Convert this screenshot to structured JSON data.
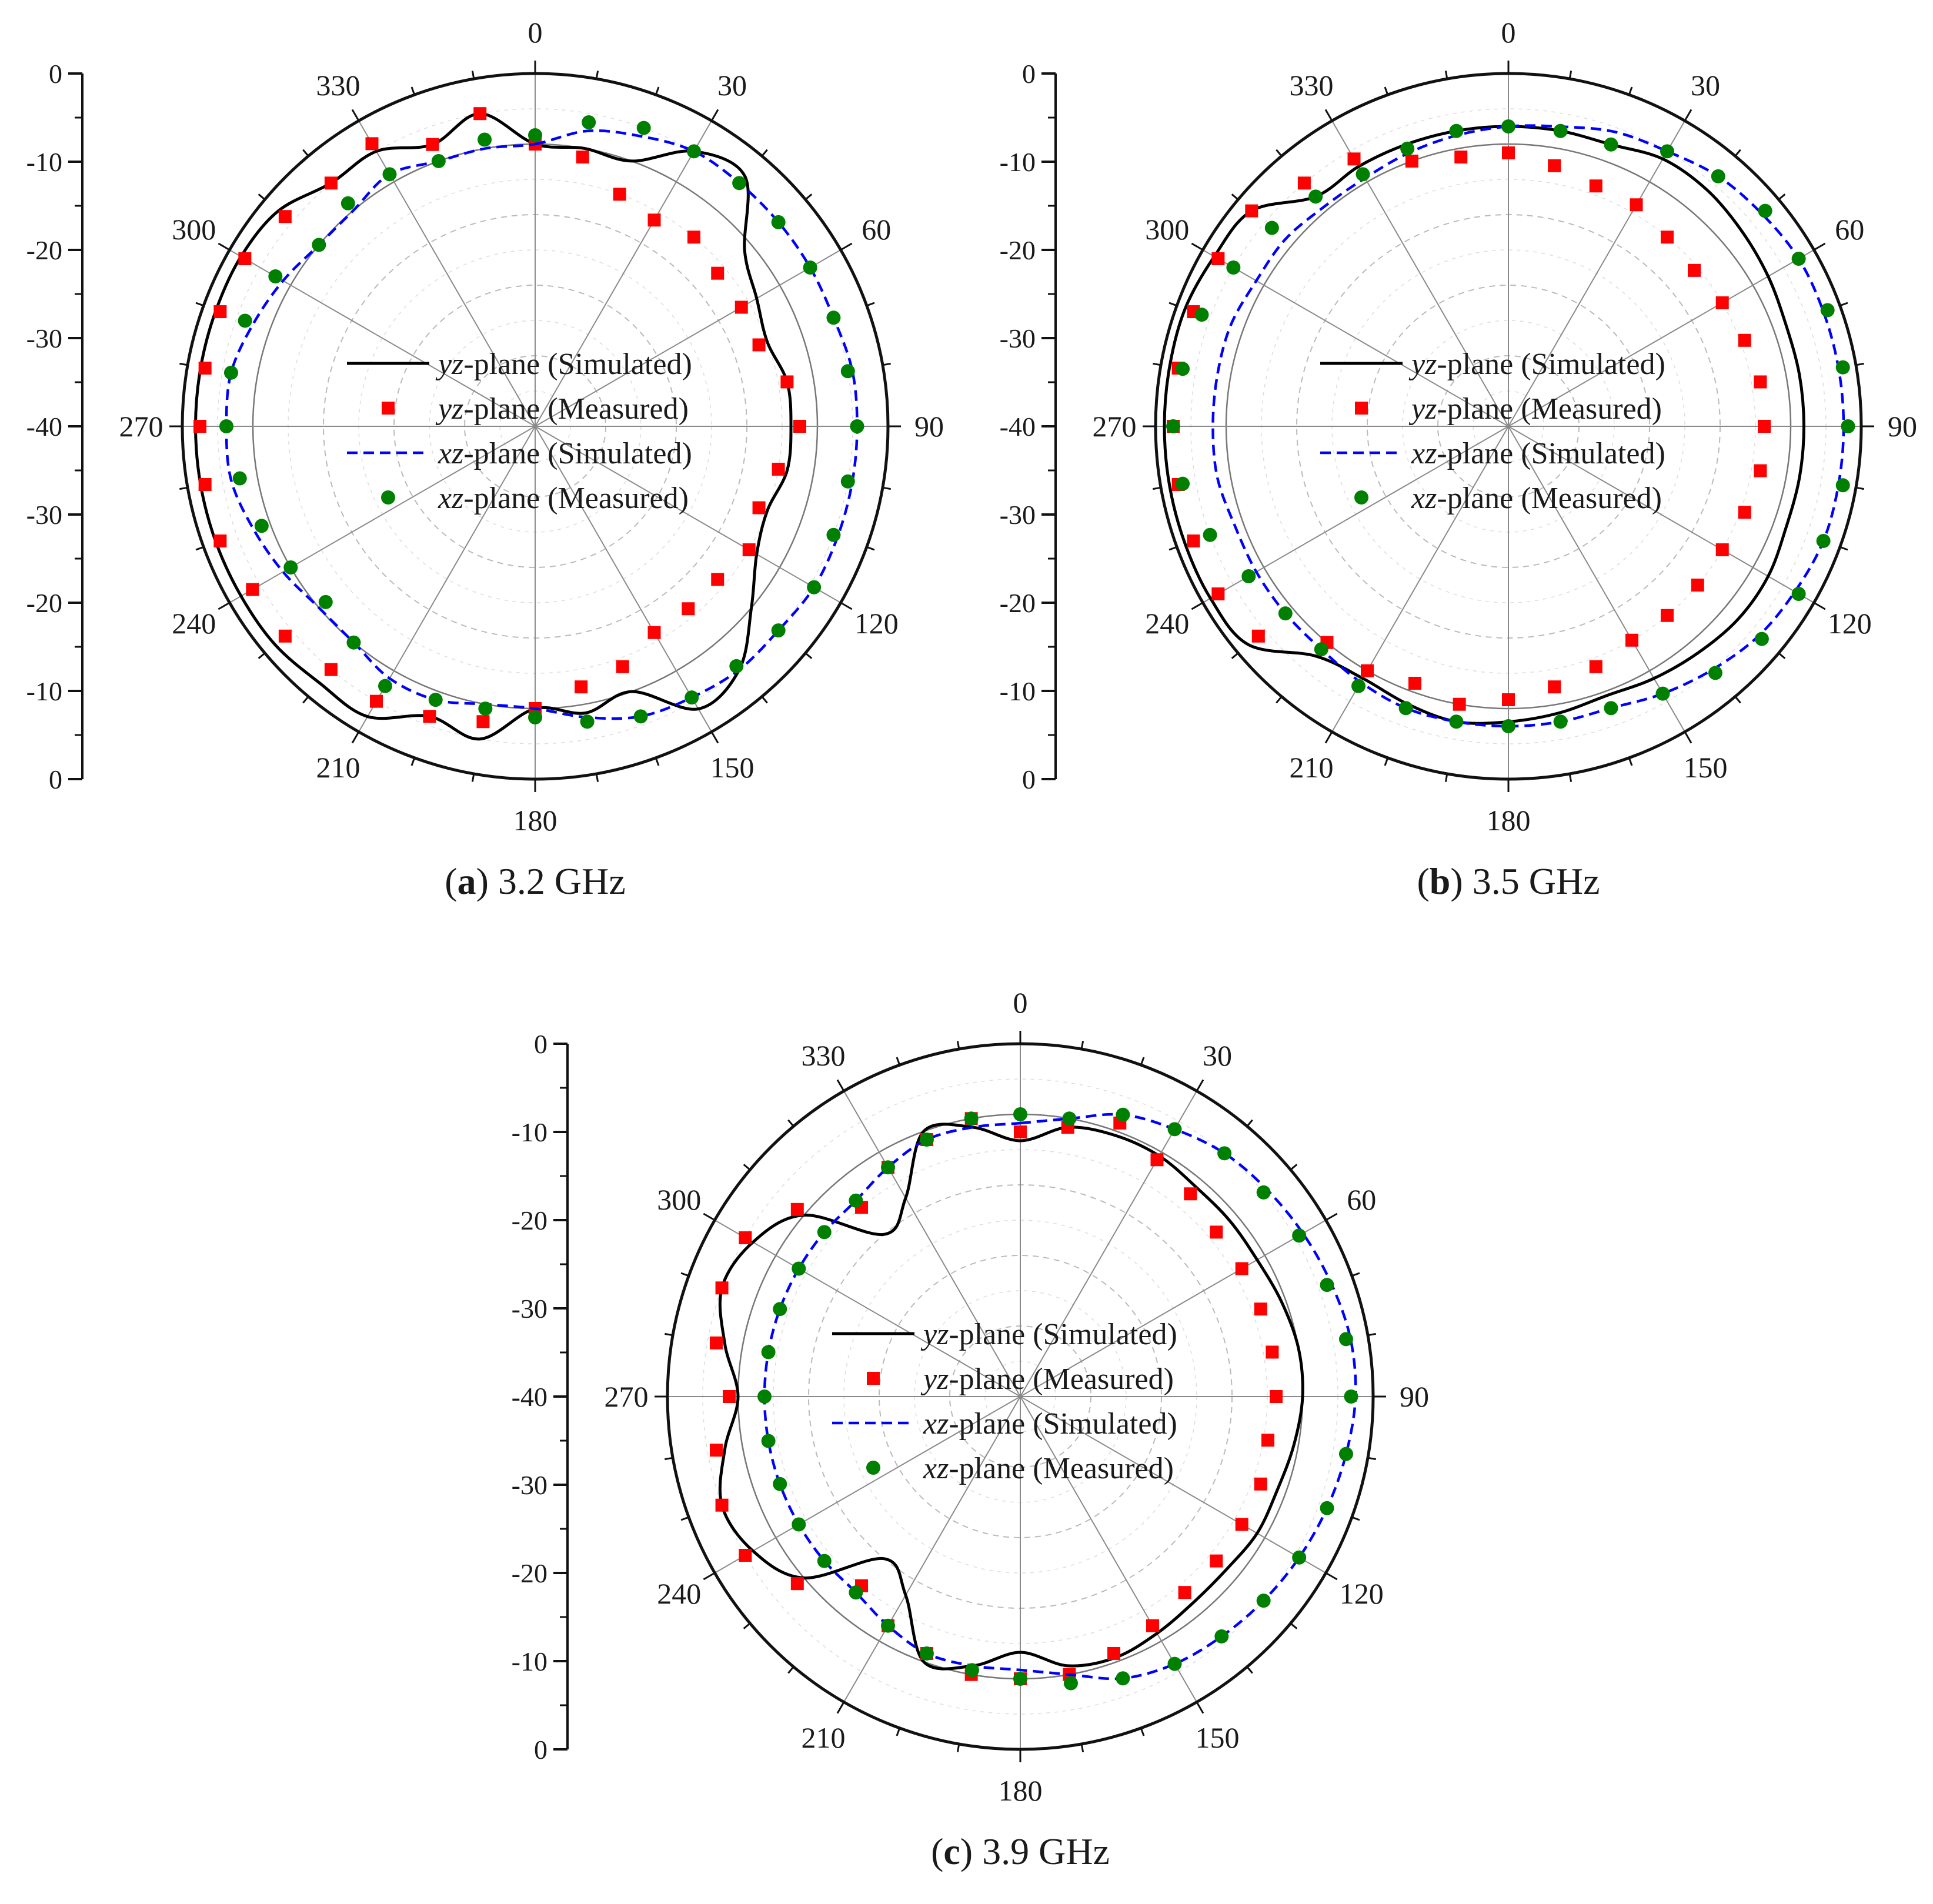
{
  "chart_data": [
    {
      "type": "polar",
      "caption_letter": "a",
      "caption_text": "3.2 GHz",
      "radial_range": [
        -40,
        0
      ],
      "radial_ticks": [
        "0",
        "-10",
        "-20",
        "-30",
        "-40",
        "-30",
        "-20",
        "-10",
        "0"
      ],
      "angle_ticks": [
        "0",
        "30",
        "60",
        "90",
        "120",
        "150",
        "180",
        "210",
        "240",
        "270",
        "300",
        "330"
      ],
      "grid": true,
      "legend_position": "center",
      "series": [
        {
          "name": "yz-plane (Simulated)",
          "style": "solid",
          "color": "#000000",
          "theta": [
            0,
            10,
            20,
            30,
            40,
            50,
            60,
            70,
            80,
            90,
            100,
            110,
            120,
            130,
            140,
            150,
            160,
            170,
            180,
            190,
            200,
            210,
            220,
            230,
            240,
            250,
            260,
            270,
            280,
            290,
            300,
            310,
            320,
            330,
            340,
            350
          ],
          "r_db": [
            -8,
            -8,
            -8,
            -4,
            -3,
            -9,
            -11,
            -12,
            -11,
            -11,
            -11,
            -12,
            -11,
            -8,
            -4,
            -3,
            -8,
            -7,
            -8,
            -4,
            -5,
            -2,
            -2,
            -1.5,
            -1.5,
            -1.5,
            -1.5,
            -1.5,
            -1.5,
            -1.5,
            -1.5,
            -2,
            -4,
            -4,
            -6,
            -4
          ]
        },
        {
          "name": "yz-plane (Measured)",
          "style": "marker-square",
          "color": "#ff0000",
          "theta": [
            0,
            10,
            20,
            30,
            40,
            50,
            60,
            70,
            80,
            90,
            100,
            110,
            120,
            130,
            140,
            150,
            160,
            170,
            180,
            190,
            200,
            210,
            220,
            230,
            240,
            250,
            260,
            270,
            280,
            290,
            300,
            310,
            320,
            330,
            340,
            350
          ],
          "r_db": [
            -8,
            -9,
            -12,
            -13,
            -12,
            -13,
            -13,
            -13,
            -11,
            -10,
            -12,
            -13,
            -12,
            -13,
            -13,
            -13,
            -11,
            -10,
            -8,
            -6,
            -5,
            -4,
            -4,
            -3,
            -3,
            -2,
            -2,
            -2,
            -2,
            -2,
            -2,
            -3,
            -4,
            -3,
            -6,
            -4
          ]
        },
        {
          "name": "xz-plane (Simulated)",
          "style": "dashed",
          "color": "#0000ff",
          "theta": [
            0,
            10,
            20,
            30,
            40,
            50,
            60,
            70,
            80,
            90,
            100,
            110,
            120,
            130,
            140,
            150,
            160,
            170,
            180,
            190,
            200,
            210,
            220,
            230,
            240,
            250,
            260,
            270,
            280,
            290,
            300,
            310,
            320,
            330,
            340,
            350
          ],
          "r_db": [
            -8,
            -6,
            -5,
            -4,
            -4,
            -4,
            -4,
            -4,
            -3.5,
            -3.5,
            -3.5,
            -3.5,
            -3.5,
            -4,
            -4,
            -4.5,
            -5,
            -6.5,
            -8,
            -8,
            -7,
            -7,
            -8,
            -8,
            -7,
            -6,
            -5,
            -5,
            -5,
            -6,
            -7,
            -8,
            -8,
            -7,
            -8,
            -8
          ]
        },
        {
          "name": "xz-plane (Measured)",
          "style": "marker-circle",
          "color": "#008000",
          "theta": [
            0,
            10,
            20,
            30,
            40,
            50,
            60,
            70,
            80,
            90,
            100,
            110,
            120,
            130,
            140,
            150,
            160,
            170,
            180,
            190,
            200,
            210,
            220,
            230,
            240,
            250,
            260,
            270,
            280,
            290,
            300,
            310,
            320,
            330,
            340,
            350
          ],
          "r_db": [
            -7,
            -5,
            -4,
            -4,
            -4,
            -4,
            -4,
            -4,
            -4,
            -3.5,
            -4,
            -4,
            -3.5,
            -4,
            -4.5,
            -4.5,
            -5,
            -6,
            -7,
            -7.5,
            -7,
            -6,
            -8,
            -9,
            -8,
            -7,
            -6,
            -5,
            -5,
            -5,
            -6,
            -8,
            -7,
            -7,
            -8,
            -7
          ]
        }
      ]
    },
    {
      "type": "polar",
      "caption_letter": "b",
      "caption_text": "3.5 GHz",
      "radial_range": [
        -40,
        0
      ],
      "radial_ticks": [
        "0",
        "-10",
        "-20",
        "-30",
        "-40",
        "-30",
        "-20",
        "-10",
        "0"
      ],
      "angle_ticks": [
        "0",
        "30",
        "60",
        "90",
        "120",
        "150",
        "180",
        "210",
        "240",
        "270",
        "300",
        "330"
      ],
      "grid": true,
      "legend_position": "center",
      "series": [
        {
          "name": "yz-plane (Simulated)",
          "style": "solid",
          "color": "#000000",
          "theta": [
            0,
            10,
            20,
            30,
            40,
            50,
            60,
            70,
            80,
            90,
            100,
            110,
            120,
            130,
            140,
            150,
            160,
            170,
            180,
            190,
            200,
            210,
            220,
            230,
            240,
            250,
            260,
            270,
            280,
            290,
            300,
            310,
            320,
            330,
            340,
            350
          ],
          "r_db": [
            -6,
            -6,
            -6,
            -5,
            -5,
            -5.5,
            -6,
            -6.5,
            -6.5,
            -6.5,
            -6.5,
            -6.5,
            -6,
            -6,
            -6.5,
            -7,
            -7.5,
            -7,
            -6.5,
            -6,
            -6.5,
            -7,
            -6,
            -1.5,
            -1,
            -1,
            -1,
            -1,
            -1,
            -1,
            -1.5,
            -2,
            -6,
            -6,
            -6,
            -6
          ]
        },
        {
          "name": "yz-plane (Measured)",
          "style": "marker-square",
          "color": "#ff0000",
          "theta": [
            0,
            10,
            20,
            30,
            40,
            50,
            60,
            70,
            80,
            90,
            100,
            110,
            120,
            130,
            140,
            150,
            160,
            170,
            180,
            190,
            200,
            210,
            220,
            230,
            240,
            250,
            260,
            270,
            280,
            290,
            300,
            310,
            320,
            330,
            340,
            350
          ],
          "r_db": [
            -9,
            -10,
            -11,
            -11,
            -12,
            -12.5,
            -12,
            -11.5,
            -11,
            -11,
            -11,
            -11.5,
            -12,
            -12,
            -12,
            -12,
            -11,
            -10,
            -9,
            -8,
            -9,
            -8,
            -8,
            -3,
            -2,
            -2,
            -2,
            -2,
            -2,
            -2,
            -2,
            -2,
            -4,
            -5,
            -8,
            -9
          ]
        },
        {
          "name": "xz-plane (Simulated)",
          "style": "dashed",
          "color": "#0000ff",
          "theta": [
            0,
            10,
            20,
            30,
            40,
            50,
            60,
            70,
            80,
            90,
            100,
            110,
            120,
            130,
            140,
            150,
            160,
            170,
            180,
            190,
            200,
            210,
            220,
            230,
            240,
            250,
            260,
            270,
            280,
            290,
            300,
            310,
            320,
            330,
            340,
            350
          ],
          "r_db": [
            -6,
            -5.5,
            -4.5,
            -4,
            -3,
            -2.5,
            -2,
            -2,
            -2,
            -2,
            -2,
            -2,
            -2.5,
            -3,
            -4,
            -5,
            -6,
            -6,
            -6,
            -6,
            -6,
            -6.5,
            -7,
            -7,
            -7,
            -7,
            -6.5,
            -6.5,
            -6.5,
            -6.5,
            -7,
            -7,
            -7.5,
            -7.5,
            -7,
            -6.5
          ]
        },
        {
          "name": "xz-plane (Measured)",
          "style": "marker-circle",
          "color": "#008000",
          "theta": [
            0,
            10,
            20,
            30,
            40,
            50,
            60,
            70,
            80,
            90,
            100,
            110,
            120,
            130,
            140,
            150,
            160,
            170,
            180,
            190,
            200,
            210,
            220,
            230,
            240,
            250,
            260,
            270,
            280,
            290,
            300,
            310,
            320,
            330,
            340,
            350
          ],
          "r_db": [
            -6,
            -6,
            -6,
            -4,
            -3,
            -2,
            -2,
            -1.5,
            -1.5,
            -1.5,
            -1.5,
            -2,
            -2,
            -2.5,
            -3.5,
            -5,
            -6,
            -6,
            -6,
            -6,
            -6,
            -6,
            -7,
            -7,
            -6,
            -4,
            -2.5,
            -2,
            -2.5,
            -3,
            -4,
            -5,
            -6,
            -7,
            -6.5,
            -6
          ]
        }
      ]
    },
    {
      "type": "polar",
      "caption_letter": "c",
      "caption_text": "3.9 GHz",
      "radial_range": [
        -40,
        0
      ],
      "radial_ticks": [
        "0",
        "-10",
        "-20",
        "-30",
        "-40",
        "-30",
        "-20",
        "-10",
        "0"
      ],
      "angle_ticks": [
        "0",
        "30",
        "60",
        "90",
        "120",
        "150",
        "180",
        "210",
        "240",
        "270",
        "300",
        "330"
      ],
      "grid": true,
      "legend_position": "center",
      "series": [
        {
          "name": "yz-plane (Simulated)",
          "style": "solid",
          "color": "#000000",
          "theta": [
            0,
            10,
            20,
            30,
            40,
            50,
            60,
            70,
            80,
            90,
            100,
            110,
            120,
            130,
            140,
            150,
            160,
            170,
            180,
            190,
            200,
            210,
            220,
            230,
            240,
            250,
            260,
            270,
            280,
            290,
            300,
            310,
            320,
            330,
            340,
            350
          ],
          "r_db": [
            -11,
            -9,
            -8.5,
            -8.5,
            -9,
            -9,
            -9,
            -8.5,
            -8,
            -8,
            -8.5,
            -9,
            -9,
            -9.5,
            -9.5,
            -9,
            -8.5,
            -9,
            -11,
            -9,
            -8,
            -14,
            -16,
            -8,
            -5,
            -4,
            -6,
            -8,
            -6,
            -4,
            -5,
            -8,
            -16,
            -14,
            -8,
            -9
          ]
        },
        {
          "name": "yz-plane (Measured)",
          "style": "marker-square",
          "color": "#ff0000",
          "theta": [
            0,
            10,
            20,
            30,
            40,
            50,
            60,
            70,
            80,
            90,
            100,
            110,
            120,
            130,
            140,
            150,
            160,
            170,
            180,
            190,
            200,
            210,
            220,
            230,
            240,
            250,
            260,
            270,
            280,
            290,
            300,
            310,
            320,
            330,
            340,
            350
          ],
          "r_db": [
            -10,
            -9,
            -7,
            -9,
            -10,
            -11,
            -11,
            -11,
            -11,
            -11,
            -11.5,
            -11,
            -11,
            -11,
            -11,
            -10,
            -9,
            -8,
            -8,
            -8,
            -9,
            -10,
            -12,
            -7,
            -4,
            -4,
            -5,
            -7,
            -5,
            -4,
            -4,
            -7,
            -12,
            -10,
            -9,
            -8
          ]
        },
        {
          "name": "xz-plane (Simulated)",
          "style": "dashed",
          "color": "#0000ff",
          "theta": [
            0,
            10,
            20,
            30,
            40,
            50,
            60,
            70,
            80,
            90,
            100,
            110,
            120,
            130,
            140,
            150,
            160,
            170,
            180,
            190,
            200,
            210,
            220,
            230,
            240,
            250,
            260,
            270,
            280,
            290,
            300,
            310,
            320,
            330,
            340,
            350
          ],
          "r_db": [
            -9,
            -8,
            -6,
            -5,
            -4,
            -3.5,
            -3,
            -2.5,
            -2,
            -2,
            -2.5,
            -3,
            -3.5,
            -4,
            -4.5,
            -5,
            -6,
            -8,
            -9,
            -9,
            -9,
            -10,
            -11,
            -11,
            -11,
            -11,
            -11,
            -11,
            -11,
            -11,
            -11,
            -11,
            -11,
            -10,
            -9,
            -9
          ]
        },
        {
          "name": "xz-plane (Measured)",
          "style": "marker-circle",
          "color": "#008000",
          "theta": [
            0,
            10,
            20,
            30,
            40,
            50,
            60,
            70,
            80,
            90,
            100,
            110,
            120,
            130,
            140,
            150,
            160,
            170,
            180,
            190,
            200,
            210,
            220,
            230,
            240,
            250,
            260,
            270,
            280,
            290,
            300,
            310,
            320,
            330,
            340,
            350
          ],
          "r_db": [
            -8,
            -8,
            -6,
            -5,
            -4,
            -4,
            -3.5,
            -3,
            -2.5,
            -2.5,
            -2.5,
            -3,
            -3.5,
            -4,
            -4.5,
            -5,
            -6,
            -7,
            -8,
            -8.5,
            -9,
            -10,
            -11,
            -11,
            -11,
            -11,
            -11,
            -11,
            -11,
            -11,
            -11,
            -11,
            -11,
            -10,
            -9,
            -8
          ]
        }
      ]
    }
  ]
}
